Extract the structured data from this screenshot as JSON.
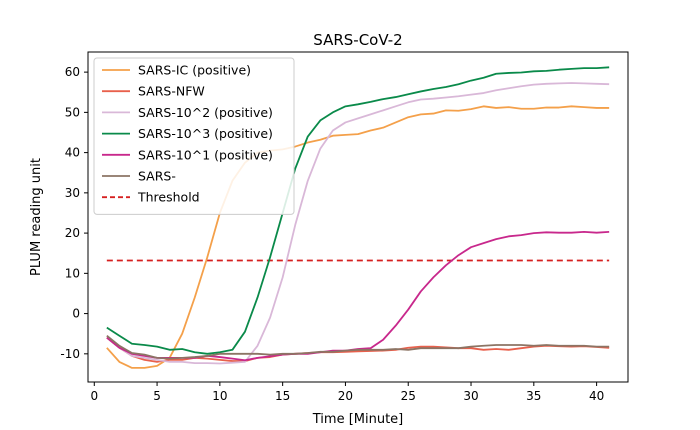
{
  "chart_data": {
    "type": "line",
    "title": "SARS-CoV-2",
    "xlabel": "Time [Minute]",
    "ylabel": "PLUM reading unit",
    "xlim": [
      -0.5,
      42.5
    ],
    "ylim": [
      -17,
      65
    ],
    "xticks": [
      0,
      5,
      10,
      15,
      20,
      25,
      30,
      35,
      40
    ],
    "yticks": [
      -10,
      0,
      10,
      20,
      30,
      40,
      50,
      60
    ],
    "x": [
      1,
      2,
      3,
      4,
      5,
      6,
      7,
      8,
      9,
      10,
      11,
      12,
      13,
      14,
      15,
      16,
      17,
      18,
      19,
      20,
      21,
      22,
      23,
      24,
      25,
      26,
      27,
      28,
      29,
      30,
      31,
      32,
      33,
      34,
      35,
      36,
      37,
      38,
      39,
      40,
      41
    ],
    "legend_position": "upper-left",
    "grid": false,
    "series": [
      {
        "name": "SARS-IC (positive)",
        "color": "#f4a04a",
        "dashed": false,
        "values": [
          -8.5,
          -12,
          -13.5,
          -13.5,
          -13,
          -11,
          -5,
          4,
          14,
          25,
          33,
          37.5,
          40,
          40.5,
          40.8,
          41.5,
          42.5,
          43.2,
          44.2,
          44.4,
          44.6,
          45.5,
          46.2,
          47.5,
          48.8,
          49.5,
          49.7,
          50.5,
          50.4,
          50.8,
          51.5,
          51.1,
          51.3,
          50.9,
          50.9,
          51.2,
          51.2,
          51.5,
          51.3,
          51.1,
          51.1
        ]
      },
      {
        "name": "SARS-NFW",
        "color": "#e8604c",
        "dashed": false,
        "values": [
          -6,
          -8.5,
          -10.5,
          -11.5,
          -12,
          -11.5,
          -11.5,
          -11,
          -11.2,
          -11.5,
          -11.8,
          -11.8,
          -11,
          -10.8,
          -10.2,
          -10,
          -9.8,
          -9.6,
          -9.6,
          -9.5,
          -9.4,
          -9.3,
          -9.2,
          -9,
          -8.5,
          -8.2,
          -8.2,
          -8.4,
          -8.6,
          -8.6,
          -9,
          -8.8,
          -9,
          -8.6,
          -8.2,
          -8,
          -8.1,
          -8.2,
          -8.1,
          -8.3,
          -8.5
        ]
      },
      {
        "name": "SARS-10^2 (positive)",
        "color": "#d9b8d8",
        "dashed": false,
        "values": [
          -6,
          -8.5,
          -10.5,
          -11,
          -11.5,
          -12,
          -12,
          -12.3,
          -12.3,
          -12.4,
          -12.2,
          -12,
          -8,
          -1,
          9,
          22,
          33,
          41,
          45.5,
          47.5,
          48.5,
          49.5,
          50.5,
          51.5,
          52.5,
          53.2,
          53.4,
          53.7,
          54,
          54.4,
          54.8,
          55.5,
          56,
          56.5,
          56.9,
          57.1,
          57.2,
          57.3,
          57.2,
          57.1,
          57
        ]
      },
      {
        "name": "SARS-10^3 (positive)",
        "color": "#0a8a4a",
        "dashed": false,
        "values": [
          -3.5,
          -5.5,
          -7.5,
          -7.8,
          -8.2,
          -9,
          -8.8,
          -9.6,
          -10,
          -9.6,
          -9,
          -4.5,
          4,
          14,
          25,
          36,
          44,
          48,
          50,
          51.5,
          52,
          52.6,
          53.3,
          53.8,
          54.5,
          55.2,
          55.8,
          56.3,
          57,
          57.9,
          58.6,
          59.6,
          59.8,
          59.9,
          60.2,
          60.3,
          60.6,
          60.8,
          61,
          61,
          61.2
        ]
      },
      {
        "name": "SARS-10^1 (positive)",
        "color": "#c8288c",
        "dashed": false,
        "values": [
          -6,
          -8.5,
          -10,
          -10.5,
          -11,
          -11,
          -11,
          -11,
          -10.5,
          -10.8,
          -11.2,
          -11.6,
          -11,
          -10.6,
          -10.2,
          -10,
          -10,
          -9.6,
          -9.2,
          -9.2,
          -8.8,
          -8.6,
          -6.5,
          -3,
          1,
          5.5,
          9,
          12,
          14.5,
          16.5,
          17.5,
          18.5,
          19.2,
          19.5,
          20,
          20.2,
          20.1,
          20.1,
          20.3,
          20.1,
          20.3
        ]
      },
      {
        "name": "SARS-",
        "color": "#8c7464",
        "dashed": false,
        "values": [
          -5.5,
          -8,
          -9.8,
          -10.2,
          -11,
          -11.2,
          -11,
          -10.8,
          -10.5,
          -10,
          -10,
          -10,
          -10,
          -10.2,
          -10,
          -10,
          -9.8,
          -9.5,
          -9.5,
          -9.2,
          -9,
          -9,
          -9,
          -8.8,
          -9,
          -8.6,
          -8.6,
          -8.6,
          -8.6,
          -8.2,
          -8,
          -7.8,
          -7.8,
          -7.8,
          -8,
          -7.8,
          -8,
          -8,
          -8,
          -8.2,
          -8.2
        ]
      }
    ],
    "threshold": {
      "name": "Threshold",
      "color": "#d62020",
      "dashed": true,
      "x": [
        1,
        41
      ],
      "values": [
        13.2,
        13.2
      ]
    }
  }
}
